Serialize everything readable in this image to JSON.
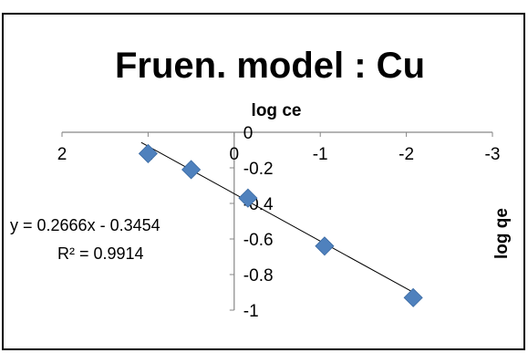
{
  "chart_data": {
    "type": "scatter",
    "title": "Fruen. model : Cu",
    "xlabel": "log ce",
    "ylabel": "log qe",
    "x_reversed": true,
    "xlim": [
      2,
      -3
    ],
    "ylim": [
      -1,
      0
    ],
    "x_ticks": [
      2,
      1,
      0,
      -1,
      -2,
      -3
    ],
    "y_ticks": [
      0,
      -0.2,
      -0.4,
      -0.6,
      -0.8,
      -1
    ],
    "x_tick_labels": [
      "2",
      "1",
      "0",
      "-1",
      "-2",
      "-3"
    ],
    "y_tick_labels": [
      "0",
      "-0.2",
      "-0.4",
      "-0.6",
      "-0.8",
      "-1"
    ],
    "grid": false,
    "series": [
      {
        "marker": "diamond",
        "color": "#4f81bd",
        "points": [
          {
            "x": 1.0,
            "y": -0.12
          },
          {
            "x": 0.5,
            "y": -0.21
          },
          {
            "x": -0.16,
            "y": -0.37
          },
          {
            "x": -1.05,
            "y": -0.64
          },
          {
            "x": -2.08,
            "y": -0.93
          }
        ]
      }
    ],
    "trendline": {
      "type": "linear",
      "slope": 0.2666,
      "intercept": -0.3454,
      "x_range": [
        1.08,
        -2.08
      ],
      "equation_label": "y = 0.2666x - 0.3454",
      "r2_label": "R² = 0.9914"
    }
  }
}
